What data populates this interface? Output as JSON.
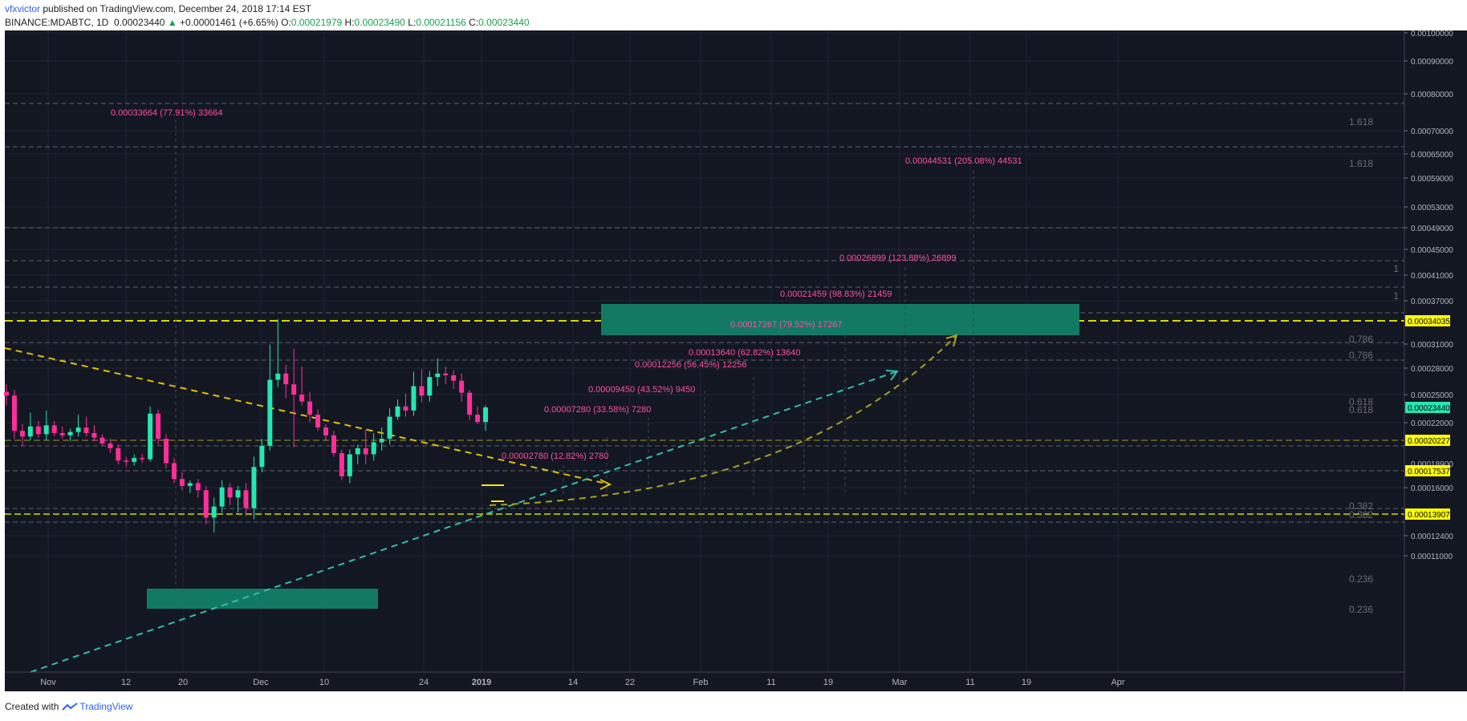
{
  "header": {
    "username": "vfxvictor",
    "published_text": " published on TradingView.com, December 24, 2018 17:14 EST",
    "symbol_text": "BINANCE:MDABTC, 1D",
    "last_price": "0.00023440",
    "change_arrow": "▲",
    "change_text": "+0.00001461 (+6.65%)",
    "o_label": "O:",
    "o_value": "0.00021979",
    "h_label": "H:",
    "h_value": "0.00023490",
    "l_label": "L:",
    "l_value": "0.00021156",
    "c_label": "C:",
    "c_value": "0.00023440"
  },
  "footer": {
    "created_with": "Created with",
    "brand": "TradingView"
  },
  "colors": {
    "background": "#131722",
    "up": "#26e5b0",
    "down": "#ff2e9a",
    "yellow_line": "#d8d800",
    "dashed_yellow": "#e0c000",
    "teal_dashed": "#2fbfa8",
    "target_text": "#ff4fa0",
    "green_box": "#127a63",
    "price_label_bg": "#ffff00",
    "grid": "#1f2433"
  },
  "chart_data": {
    "type": "candlestick",
    "symbol": "BINANCE:MDABTC",
    "interval": "1D",
    "y_axis": {
      "scale": "log",
      "ticks": [
        "0.00100000",
        "0.00090000",
        "0.00080000",
        "0.00070000",
        "0.00065000",
        "0.00059000",
        "0.00053000",
        "0.00049000",
        "0.00045000",
        "0.00041000",
        "0.00037000",
        "0.00031000",
        "0.00028000",
        "0.00025000",
        "0.00022000",
        "0.00016000",
        "0.00012400",
        "0.00011000"
      ],
      "price_labels": [
        {
          "text": "0.00034035",
          "style": "yellow"
        },
        {
          "text": "0.00023440",
          "style": "green"
        },
        {
          "text": "0.00020227",
          "style": "yellow"
        },
        {
          "text": "0.00017537",
          "style": "yellow"
        },
        {
          "text": "0.00013907",
          "style": "yellow"
        }
      ],
      "hidden_label": "0.00018900"
    },
    "x_axis": {
      "ticks": [
        "Nov",
        "12",
        "20",
        "Dec",
        "10",
        "24",
        "2019",
        "14",
        "22",
        "Feb",
        "11",
        "19",
        "Mar",
        "11",
        "19",
        "Apr"
      ]
    },
    "fib_labels": [
      "1.618",
      "1.618",
      "1",
      "1",
      "0.786",
      "0.786",
      "0.618",
      "0.618",
      "0.382",
      "0.382",
      "0.236",
      "0.236"
    ],
    "target_annotations": [
      "0.00033664 (77.91%) 33664",
      "0.00044531 (205.08%) 44531",
      "0.00026899 (123.88%) 26899",
      "0.00021459 (98.83%) 21459",
      "0.00017267 (79.52%) 17267",
      "0.00013640 (62.82%) 13640",
      "0.00012256 (56.45%) 12256",
      "0.00009450 (43.52%) 9450",
      "0.00007280 (33.58%) 7280",
      "0.00002780 (12.82%) 2780"
    ],
    "candles": [
      {
        "o": 0.00025,
        "h": 0.000258,
        "l": 0.000236,
        "c": 0.000246
      },
      {
        "o": 0.000246,
        "h": 0.000252,
        "l": 0.000205,
        "c": 0.000212
      },
      {
        "o": 0.000212,
        "h": 0.000218,
        "l": 0.000199,
        "c": 0.000207
      },
      {
        "o": 0.000207,
        "h": 0.000229,
        "l": 0.000204,
        "c": 0.000216
      },
      {
        "o": 0.000216,
        "h": 0.000221,
        "l": 0.000206,
        "c": 0.000209
      },
      {
        "o": 0.000209,
        "h": 0.000231,
        "l": 0.000204,
        "c": 0.000217
      },
      {
        "o": 0.000217,
        "h": 0.000221,
        "l": 0.000207,
        "c": 0.00021
      },
      {
        "o": 0.00021,
        "h": 0.000216,
        "l": 0.000205,
        "c": 0.000208
      },
      {
        "o": 0.000208,
        "h": 0.000214,
        "l": 0.000203,
        "c": 0.000211
      },
      {
        "o": 0.000211,
        "h": 0.000227,
        "l": 0.000207,
        "c": 0.000215
      },
      {
        "o": 0.000215,
        "h": 0.000225,
        "l": 0.000207,
        "c": 0.00021
      },
      {
        "o": 0.00021,
        "h": 0.000217,
        "l": 0.000203,
        "c": 0.000206
      },
      {
        "o": 0.000206,
        "h": 0.000209,
        "l": 0.000199,
        "c": 0.000201
      },
      {
        "o": 0.000201,
        "h": 0.000205,
        "l": 0.000193,
        "c": 0.000197
      },
      {
        "o": 0.000197,
        "h": 0.0002,
        "l": 0.000184,
        "c": 0.000187
      },
      {
        "o": 0.000187,
        "h": 0.00019,
        "l": 0.000182,
        "c": 0.000186
      },
      {
        "o": 0.000186,
        "h": 0.000192,
        "l": 0.000183,
        "c": 0.000189
      },
      {
        "o": 0.000189,
        "h": 0.000192,
        "l": 0.000185,
        "c": 0.000188
      },
      {
        "o": 0.000188,
        "h": 0.000235,
        "l": 0.000186,
        "c": 0.000228
      },
      {
        "o": 0.000228,
        "h": 0.000232,
        "l": 0.0002,
        "c": 0.000205
      },
      {
        "o": 0.000205,
        "h": 0.000209,
        "l": 0.000181,
        "c": 0.000185
      },
      {
        "o": 0.000185,
        "h": 0.000189,
        "l": 0.00017,
        "c": 0.000173
      },
      {
        "o": 0.000173,
        "h": 0.000178,
        "l": 0.000165,
        "c": 0.000168
      },
      {
        "o": 0.000168,
        "h": 0.000172,
        "l": 0.000163,
        "c": 0.00017
      },
      {
        "o": 0.00017,
        "h": 0.000173,
        "l": 0.00016,
        "c": 0.000165
      },
      {
        "o": 0.000165,
        "h": 0.000168,
        "l": 0.000143,
        "c": 0.000147
      },
      {
        "o": 0.000147,
        "h": 0.00016,
        "l": 0.000138,
        "c": 0.000154
      },
      {
        "o": 0.000154,
        "h": 0.000172,
        "l": 0.00015,
        "c": 0.000167
      },
      {
        "o": 0.000167,
        "h": 0.00017,
        "l": 0.000155,
        "c": 0.00016
      },
      {
        "o": 0.00016,
        "h": 0.000168,
        "l": 0.00015,
        "c": 0.000165
      },
      {
        "o": 0.000165,
        "h": 0.00017,
        "l": 0.000148,
        "c": 0.000153
      },
      {
        "o": 0.000153,
        "h": 0.00019,
        "l": 0.000146,
        "c": 0.000182
      },
      {
        "o": 0.000182,
        "h": 0.000205,
        "l": 0.000178,
        "c": 0.000199
      },
      {
        "o": 0.000199,
        "h": 0.000305,
        "l": 0.000195,
        "c": 0.000263
      },
      {
        "o": 0.000263,
        "h": 0.00034,
        "l": 0.000255,
        "c": 0.00027
      },
      {
        "o": 0.00027,
        "h": 0.00028,
        "l": 0.000243,
        "c": 0.000258
      },
      {
        "o": 0.000258,
        "h": 0.0003,
        "l": 0.000198,
        "c": 0.000247
      },
      {
        "o": 0.000247,
        "h": 0.000278,
        "l": 0.000236,
        "c": 0.00024
      },
      {
        "o": 0.00024,
        "h": 0.00025,
        "l": 0.00022,
        "c": 0.000227
      },
      {
        "o": 0.000227,
        "h": 0.000232,
        "l": 0.000212,
        "c": 0.000215
      },
      {
        "o": 0.000215,
        "h": 0.000218,
        "l": 0.000204,
        "c": 0.000208
      },
      {
        "o": 0.000208,
        "h": 0.000212,
        "l": 0.00019,
        "c": 0.000193
      },
      {
        "o": 0.000193,
        "h": 0.000196,
        "l": 0.000172,
        "c": 0.000175
      },
      {
        "o": 0.000175,
        "h": 0.000196,
        "l": 0.00017,
        "c": 0.000192
      },
      {
        "o": 0.000192,
        "h": 0.0002,
        "l": 0.000184,
        "c": 0.000197
      },
      {
        "o": 0.000197,
        "h": 0.000213,
        "l": 0.000184,
        "c": 0.000192
      },
      {
        "o": 0.000192,
        "h": 0.00021,
        "l": 0.000187,
        "c": 0.000202
      },
      {
        "o": 0.000202,
        "h": 0.000215,
        "l": 0.000195,
        "c": 0.000205
      },
      {
        "o": 0.000205,
        "h": 0.000233,
        "l": 0.0002,
        "c": 0.000225
      },
      {
        "o": 0.000225,
        "h": 0.000242,
        "l": 0.000222,
        "c": 0.000235
      },
      {
        "o": 0.000235,
        "h": 0.000248,
        "l": 0.000225,
        "c": 0.000231
      },
      {
        "o": 0.000231,
        "h": 0.000272,
        "l": 0.000226,
        "c": 0.000256
      },
      {
        "o": 0.000256,
        "h": 0.000275,
        "l": 0.000239,
        "c": 0.000246
      },
      {
        "o": 0.000246,
        "h": 0.000273,
        "l": 0.00024,
        "c": 0.000266
      },
      {
        "o": 0.000266,
        "h": 0.000288,
        "l": 0.000256,
        "c": 0.00027
      },
      {
        "o": 0.00027,
        "h": 0.000278,
        "l": 0.000258,
        "c": 0.000268
      },
      {
        "o": 0.000268,
        "h": 0.000274,
        "l": 0.000253,
        "c": 0.000262
      },
      {
        "o": 0.000262,
        "h": 0.00027,
        "l": 0.00024,
        "c": 0.000249
      },
      {
        "o": 0.000249,
        "h": 0.000252,
        "l": 0.000222,
        "c": 0.000227
      },
      {
        "o": 0.000227,
        "h": 0.000235,
        "l": 0.000218,
        "c": 0.00022
      },
      {
        "o": 0.00022,
        "h": 0.000236,
        "l": 0.000212,
        "c": 0.000234
      }
    ]
  }
}
